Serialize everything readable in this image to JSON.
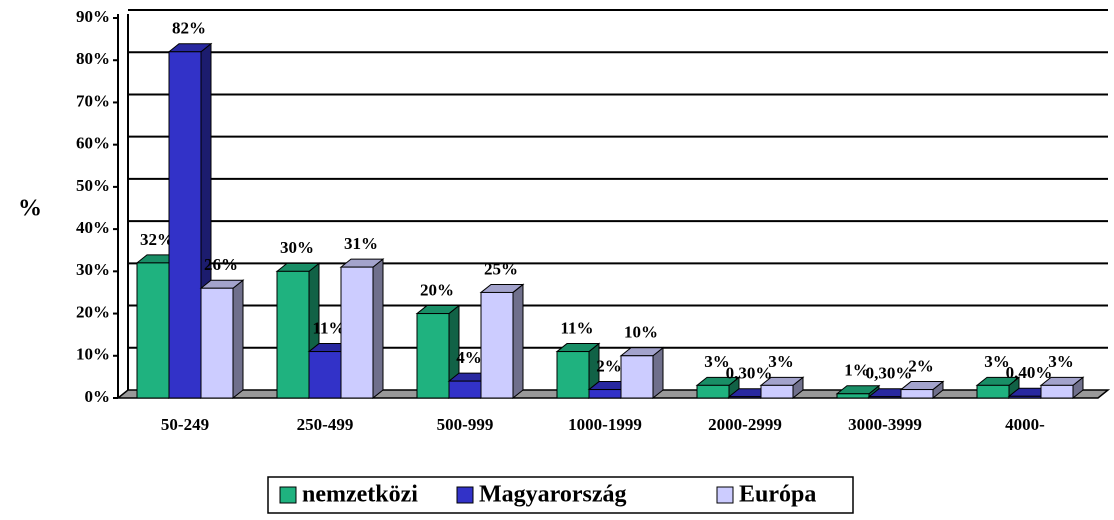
{
  "chart_data": {
    "type": "bar3d",
    "ylabel": "%",
    "categories": [
      "50-249",
      "250-499",
      "500-999",
      "1000-1999",
      "2000-2999",
      "3000-3999",
      "4000-"
    ],
    "series": [
      {
        "name": "nemzetközi",
        "color": "#1fb27f",
        "values": [
          32,
          30,
          20,
          11,
          3,
          1,
          3
        ],
        "value_labels": [
          "32%",
          "30%",
          "20%",
          "11%",
          "3%",
          "1%",
          "3%"
        ]
      },
      {
        "name": "Magyarország",
        "color": "#3232c8",
        "values": [
          82,
          11,
          4,
          2,
          0.3,
          0.3,
          0.4
        ],
        "value_labels": [
          "82%",
          "11%",
          "4%",
          "2%",
          "0,30%",
          "0,30%",
          "0,40%"
        ]
      },
      {
        "name": "Európa",
        "color": "#ccccff",
        "values": [
          26,
          31,
          25,
          10,
          3,
          2,
          3
        ],
        "value_labels": [
          "26%",
          "31%",
          "25%",
          "10%",
          "3%",
          "2%",
          "3%"
        ]
      }
    ],
    "ylim": [
      0,
      90
    ],
    "yticks": [
      {
        "value": 0,
        "label": "0%"
      },
      {
        "value": 10,
        "label": "10%"
      },
      {
        "value": 20,
        "label": "20%"
      },
      {
        "value": 30,
        "label": "30%"
      },
      {
        "value": 40,
        "label": "40%"
      },
      {
        "value": 50,
        "label": "50%"
      },
      {
        "value": 60,
        "label": "60%"
      },
      {
        "value": 70,
        "label": "70%"
      },
      {
        "value": 80,
        "label": "80%"
      },
      {
        "value": 90,
        "label": "90%"
      }
    ],
    "grid": true,
    "legend": "bottom"
  }
}
